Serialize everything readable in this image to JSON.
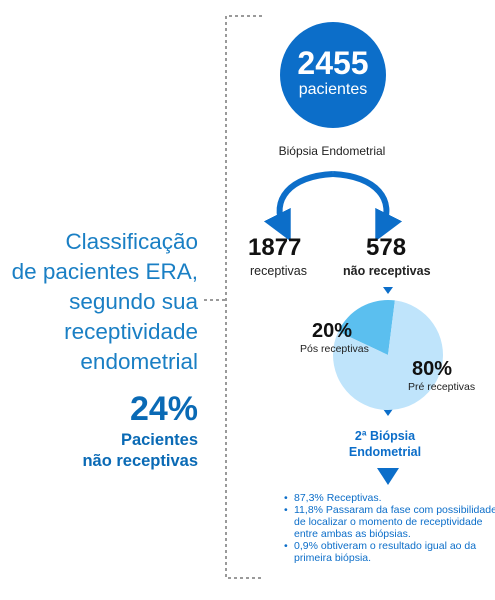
{
  "left": {
    "title_lines": [
      "Classificação",
      "de pacientes ERA,",
      "segundo sua",
      "receptividade",
      "endometrial"
    ],
    "percent": "24%",
    "percent_label_lines": [
      "Pacientes",
      "não receptivas"
    ]
  },
  "top": {
    "number": "2455",
    "label": "pacientes"
  },
  "biopsy_label": "Biópsia Endometrial",
  "receptive": {
    "number": "1877",
    "label": "receptivas"
  },
  "non_receptive": {
    "number": "578",
    "label": "não receptivas"
  },
  "chart_data": {
    "type": "pie",
    "title": "",
    "slices": [
      {
        "label": "Pós receptivas",
        "value": 20,
        "display": "20%"
      },
      {
        "label": "Pré receptivas",
        "value": 80,
        "display": "80%"
      }
    ]
  },
  "second_biopsy_lines": [
    "2ª Biópsia",
    "Endometrial"
  ],
  "results": [
    "87,3% Receptivas.",
    "11,8% Passaram da fase com possibilidade de localizar o momento de receptividade entre ambas as biópsias.",
    "0,9% obtiveram o  resultado igual ao da primeira biópsia."
  ],
  "colors": {
    "dark_blue": "#0c6ec9",
    "mid_blue": "#1a7fc4",
    "light_blue": "#bfe4fb",
    "slice_blue": "#5bbfef",
    "bracket_gray": "#9a9a9a"
  }
}
